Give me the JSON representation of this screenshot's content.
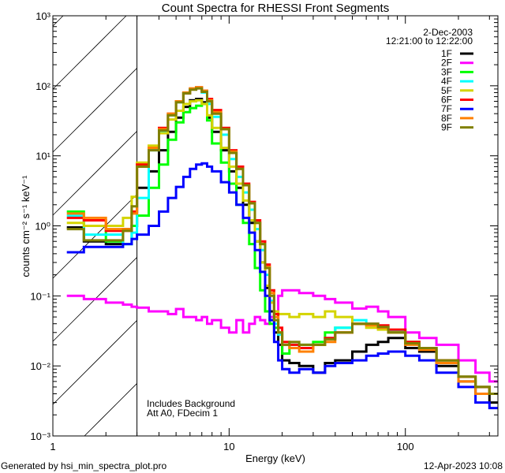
{
  "chart_data": {
    "type": "line",
    "title": "Count Spectra for RHESSI Front Segments",
    "xlabel": "Energy (keV)",
    "ylabel": "counts cm⁻² s⁻¹ keV⁻¹",
    "xscale": "log",
    "yscale": "log",
    "xlim": [
      1,
      335
    ],
    "ylim": [
      0.001,
      1000
    ],
    "xticks": [
      1,
      10,
      100
    ],
    "xtick_labels": [
      "1",
      "10",
      "100"
    ],
    "yticks": [
      0.001,
      0.01,
      0.1,
      1,
      10,
      100,
      1000
    ],
    "ytick_labels": [
      "10⁻³",
      "10⁻²",
      "10⁻¹",
      "10⁰",
      "10¹",
      "10²",
      "10³"
    ],
    "hatched_region_keV": [
      1,
      3
    ],
    "legend_position": "top-right",
    "annotations": {
      "date": "2-Dec-2003",
      "time_range": "12:21:00 to 12:22:00",
      "background_note": "Includes Background",
      "att_note": "Att A0, FDecim 1"
    },
    "x": [
      1.2,
      1.5,
      2.0,
      2.5,
      2.8,
      3.0,
      3.5,
      4.0,
      4.5,
      5.0,
      5.5,
      6.0,
      6.5,
      7.0,
      7.5,
      8.0,
      9.0,
      10,
      11,
      12,
      13,
      14,
      15,
      16,
      17,
      18,
      19,
      20,
      22,
      25,
      30,
      35,
      40,
      50,
      60,
      70,
      80,
      100,
      120,
      150,
      200,
      250,
      300
    ],
    "x_end": 335,
    "series": [
      {
        "name": "1F",
        "color": "#000000",
        "values": [
          0.95,
          0.6,
          0.55,
          0.9,
          1.0,
          3.5,
          6,
          12,
          22,
          35,
          50,
          62,
          65,
          58,
          35,
          22,
          12,
          6,
          3.5,
          2,
          1.1,
          0.6,
          0.3,
          0.13,
          0.06,
          0.03,
          0.02,
          0.012,
          0.011,
          0.01,
          0.008,
          0.011,
          0.012,
          0.016,
          0.02,
          0.022,
          0.025,
          0.018,
          0.016,
          0.01,
          0.006,
          0.004,
          0.003
        ]
      },
      {
        "name": "2F",
        "color": "#ff00ff",
        "values": [
          0.1,
          0.09,
          0.08,
          0.075,
          0.07,
          0.068,
          0.06,
          0.06,
          0.055,
          0.065,
          0.05,
          0.05,
          0.045,
          0.05,
          0.04,
          0.045,
          0.035,
          0.03,
          0.045,
          0.03,
          0.04,
          0.05,
          0.045,
          0.04,
          0.05,
          0.06,
          0.1,
          0.12,
          0.12,
          0.11,
          0.1,
          0.09,
          0.08,
          0.066,
          0.07,
          0.06,
          0.05,
          0.03,
          0.025,
          0.02,
          0.012,
          0.008,
          0.006
        ]
      },
      {
        "name": "3F",
        "color": "#00ff00",
        "values": [
          1.6,
          1.0,
          0.6,
          0.55,
          1.0,
          1.4,
          3.5,
          7.5,
          17,
          30,
          42,
          48,
          52,
          55,
          32,
          15,
          8,
          4,
          2,
          1.1,
          0.55,
          0.25,
          0.12,
          0.06,
          0.04,
          0.035,
          0.03,
          0.015,
          0.02,
          0.02,
          0.022,
          0.03,
          0.035,
          0.04,
          0.04,
          0.036,
          0.032,
          0.022,
          0.018,
          0.012,
          0.007,
          0.005,
          0.004
        ]
      },
      {
        "name": "4F",
        "color": "#00ffff",
        "values": [
          1.4,
          0.75,
          0.75,
          0.55,
          0.8,
          2.5,
          12,
          22,
          38,
          58,
          78,
          90,
          93,
          80,
          55,
          36,
          20,
          9,
          5,
          3,
          1.7,
          0.9,
          0.45,
          0.2,
          0.085,
          0.04,
          0.028,
          0.02,
          0.02,
          0.018,
          0.02,
          0.025,
          0.035,
          0.045,
          0.04,
          0.036,
          0.032,
          0.022,
          0.018,
          0.012,
          0.007,
          0.005,
          0.004
        ]
      },
      {
        "name": "5F",
        "color": "#d4d400",
        "values": [
          1.1,
          1.0,
          1.0,
          1.3,
          2.6,
          8,
          14,
          21,
          33,
          44,
          55,
          60,
          62,
          55,
          38,
          25,
          13,
          7,
          4,
          2.3,
          1.2,
          0.6,
          0.3,
          0.14,
          0.08,
          0.06,
          0.055,
          0.055,
          0.05,
          0.055,
          0.05,
          0.06,
          0.05,
          0.04,
          0.035,
          0.033,
          0.03,
          0.022,
          0.018,
          0.012,
          0.007,
          0.005,
          0.004
        ]
      },
      {
        "name": "6F",
        "color": "#ff0000",
        "values": [
          1.3,
          1.2,
          0.85,
          0.85,
          1.6,
          7.5,
          13,
          25,
          40,
          60,
          78,
          90,
          95,
          85,
          65,
          45,
          25,
          12,
          7,
          4,
          2.2,
          1.2,
          0.6,
          0.28,
          0.12,
          0.055,
          0.035,
          0.022,
          0.02,
          0.018,
          0.02,
          0.025,
          0.03,
          0.04,
          0.04,
          0.038,
          0.033,
          0.022,
          0.018,
          0.012,
          0.007,
          0.005,
          0.004
        ]
      },
      {
        "name": "7F",
        "color": "#0000ff",
        "values": [
          0.42,
          0.5,
          0.5,
          0.55,
          0.65,
          0.75,
          1.0,
          1.6,
          2.5,
          3.6,
          5,
          6.5,
          7.5,
          7.8,
          7,
          6,
          4.2,
          3,
          2,
          1.3,
          0.8,
          0.45,
          0.22,
          0.1,
          0.045,
          0.022,
          0.012,
          0.009,
          0.008,
          0.009,
          0.008,
          0.01,
          0.011,
          0.012,
          0.014,
          0.015,
          0.016,
          0.014,
          0.012,
          0.008,
          0.005,
          0.003,
          0.0025
        ]
      },
      {
        "name": "8F",
        "color": "#ff8000",
        "values": [
          1.5,
          1.3,
          0.9,
          0.9,
          1.5,
          7,
          13,
          24,
          40,
          60,
          80,
          92,
          95,
          85,
          62,
          42,
          24,
          11.5,
          6.5,
          3.8,
          2.1,
          1.1,
          0.55,
          0.26,
          0.11,
          0.05,
          0.03,
          0.02,
          0.018,
          0.016,
          0.02,
          0.022,
          0.03,
          0.04,
          0.038,
          0.035,
          0.03,
          0.02,
          0.017,
          0.011,
          0.006,
          0.004,
          0.004
        ]
      },
      {
        "name": "9F",
        "color": "#808000",
        "values": [
          0.9,
          0.62,
          0.62,
          0.85,
          1.9,
          7,
          12,
          23,
          38,
          58,
          78,
          88,
          92,
          82,
          60,
          40,
          24,
          11,
          6.5,
          3.8,
          2.1,
          1.1,
          0.55,
          0.25,
          0.1,
          0.045,
          0.03,
          0.02,
          0.022,
          0.02,
          0.02,
          0.024,
          0.03,
          0.04,
          0.04,
          0.036,
          0.03,
          0.021,
          0.018,
          0.012,
          0.007,
          0.005,
          0.004
        ]
      }
    ]
  },
  "footer": {
    "generated_by": "Generated by hsi_min_spectra_plot.pro",
    "timestamp": "12-Apr-2023 10:08"
  }
}
